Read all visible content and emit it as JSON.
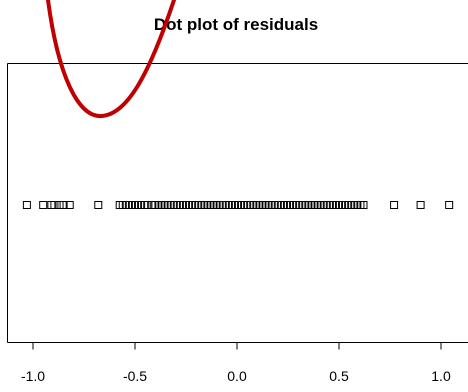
{
  "chart_data": {
    "type": "scatter",
    "title": "Dot plot of residuals",
    "xlabel": "",
    "ylabel": "",
    "xlim": [
      -1.05,
      1.05
    ],
    "x_ticks": [
      -1.0,
      -0.5,
      0.0,
      0.5,
      1.0
    ],
    "x_tick_labels": [
      "-1.0",
      "-0.5",
      "0.0",
      "0.5",
      "1.0"
    ],
    "grid": false,
    "marker": "open-square",
    "marker_color": "#000000",
    "points": [
      -1.03,
      -0.95,
      -0.91,
      -0.895,
      -0.87,
      -0.85,
      -0.82,
      -0.68,
      -0.575,
      -0.56,
      -0.545,
      -0.53,
      -0.515,
      -0.5,
      -0.485,
      -0.47,
      -0.455,
      -0.44,
      -0.415,
      -0.4,
      -0.385,
      -0.37,
      -0.355,
      -0.34,
      -0.325,
      -0.31,
      -0.295,
      -0.28,
      -0.265,
      -0.25,
      -0.235,
      -0.22,
      -0.205,
      -0.19,
      -0.175,
      -0.16,
      -0.145,
      -0.13,
      -0.115,
      -0.1,
      -0.085,
      -0.07,
      -0.055,
      -0.04,
      -0.025,
      -0.01,
      0.005,
      0.02,
      0.035,
      0.05,
      0.065,
      0.08,
      0.095,
      0.11,
      0.125,
      0.14,
      0.155,
      0.17,
      0.185,
      0.2,
      0.215,
      0.23,
      0.245,
      0.26,
      0.275,
      0.29,
      0.305,
      0.32,
      0.335,
      0.35,
      0.365,
      0.38,
      0.395,
      0.41,
      0.425,
      0.44,
      0.455,
      0.47,
      0.485,
      0.5,
      0.515,
      0.53,
      0.545,
      0.56,
      0.575,
      0.59,
      0.605,
      0.62,
      0.77,
      0.9,
      1.04
    ],
    "annotation": {
      "type": "freehand-curve",
      "color": "#c00000"
    }
  }
}
